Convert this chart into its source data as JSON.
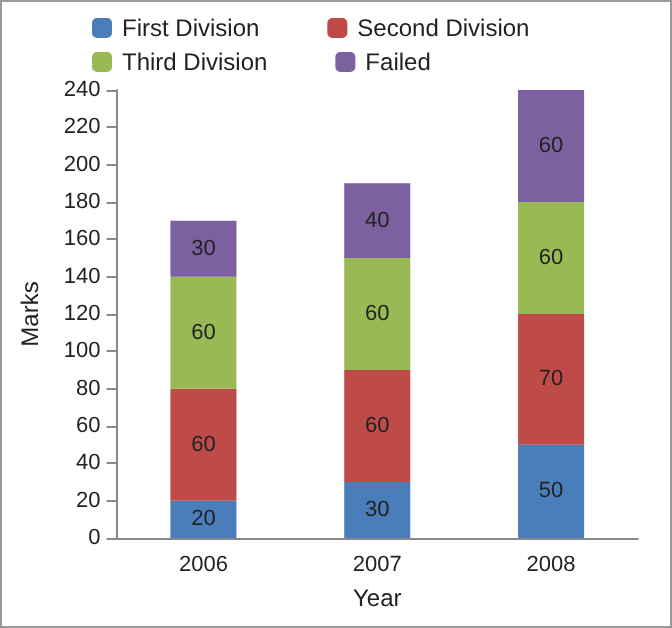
{
  "chart_data": {
    "type": "bar",
    "stacked": true,
    "xlabel": "Year",
    "ylabel": "Marks",
    "categories": [
      "2006",
      "2007",
      "2008"
    ],
    "series": [
      {
        "name": "First Division",
        "color": "#4a7ebb",
        "values": [
          20,
          30,
          50
        ]
      },
      {
        "name": "Second Division",
        "color": "#be4b48",
        "values": [
          60,
          60,
          70
        ]
      },
      {
        "name": "Third Division",
        "color": "#98b954",
        "values": [
          60,
          60,
          60
        ]
      },
      {
        "name": "Failed",
        "color": "#7d60a0",
        "values": [
          30,
          40,
          60
        ]
      }
    ],
    "ylim": [
      0,
      240
    ],
    "yticks": [
      0,
      20,
      40,
      60,
      80,
      100,
      120,
      140,
      160,
      180,
      200,
      220,
      240
    ],
    "data_labels": true,
    "grid": false,
    "legend": "top"
  }
}
